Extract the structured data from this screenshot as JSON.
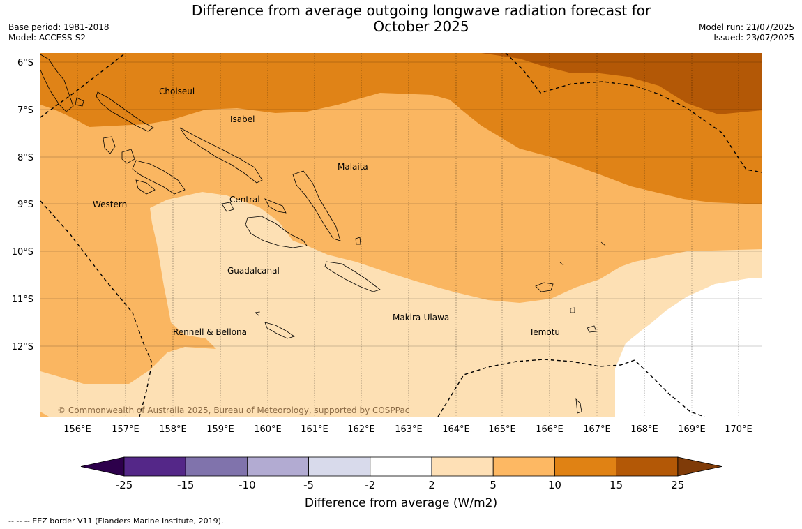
{
  "header": {
    "title_line1": "Difference from average outgoing longwave radiation forecast for",
    "title_line2": "October 2025",
    "base_period": "Base period: 1981-2018",
    "model": "Model: ACCESS-S2",
    "model_run": "Model run: 21/07/2025",
    "issued": "Issued: 23/07/2025"
  },
  "map": {
    "lat_labels": [
      "6°S",
      "7°S",
      "8°S",
      "9°S",
      "10°S",
      "11°S",
      "12°S"
    ],
    "lon_labels": [
      "156°E",
      "157°E",
      "158°E",
      "159°E",
      "160°E",
      "161°E",
      "162°E",
      "163°E",
      "164°E",
      "165°E",
      "166°E",
      "167°E",
      "168°E",
      "169°E",
      "170°E"
    ],
    "provinces": [
      "Choiseul",
      "Isabel",
      "Malaita",
      "Western",
      "Central",
      "Guadalcanal",
      "Makira-Ulawa",
      "Rennell & Bellona",
      "Temotu"
    ],
    "copyright": "© Commonwealth of Australia 2025, Bureau of Meteorology, supported by COSPPac",
    "colors": {
      "band_2_5": "#fde0b4",
      "band_5_10": "#fab661",
      "band_10_15": "#e08317",
      "band_15_25": "#b35806",
      "neutral": "#ffffff"
    }
  },
  "colorbar": {
    "label": "Difference from average (W/m2)",
    "ticks": [
      "-25",
      "-15",
      "-10",
      "-5",
      "-2",
      "2",
      "5",
      "10",
      "15",
      "25"
    ],
    "colors": [
      "#542788",
      "#8073ac",
      "#b2abd2",
      "#d8daeb",
      "#ffffff",
      "#fee0b6",
      "#fdb863",
      "#e08214",
      "#b35806"
    ],
    "under_color": "#2d004b",
    "over_color": "#7f3b08"
  },
  "footnote": "--  --  -- EEZ border V11 (Flanders Marine Institute, 2019)."
}
